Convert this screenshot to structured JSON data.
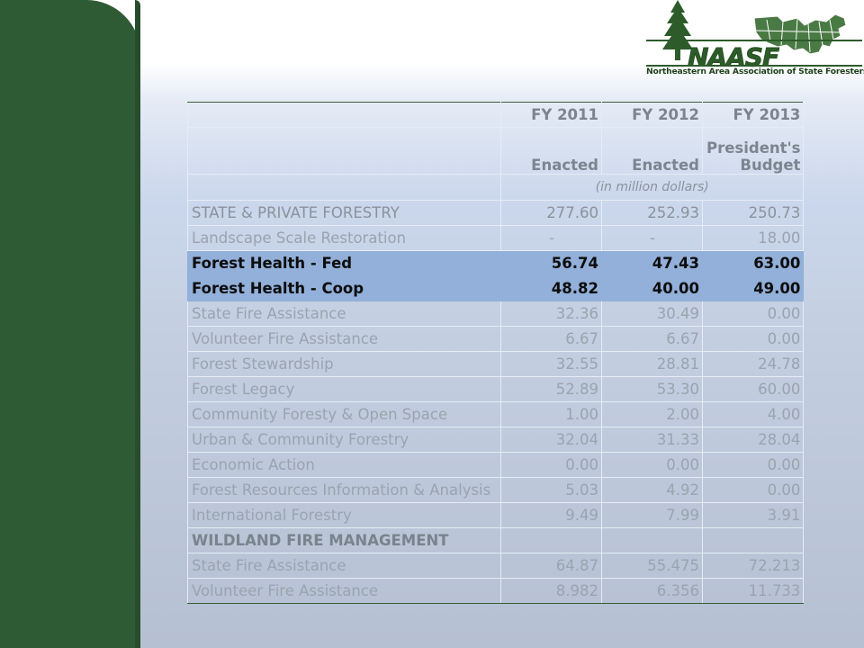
{
  "logo": {
    "wordmark": "NAASF",
    "tagline": "Northeastern Area Association of State Foresters",
    "icons": [
      "pine-tree-icon",
      "northeast-states-map-icon"
    ]
  },
  "table": {
    "header": {
      "col1": "FY 2011",
      "col2": "FY 2012",
      "col3": "FY 2013",
      "sub1": "Enacted",
      "sub2": "Enacted",
      "sub3_line1": "President's",
      "sub3_line2": "Budget",
      "units": "(in million dollars)"
    },
    "rows": [
      {
        "label": "STATE & PRIVATE FORESTRY",
        "fy2011": "277.60",
        "fy2012": "252.93",
        "fy2013": "250.73"
      },
      {
        "label": "Landscape Scale Restoration",
        "fy2011": "-",
        "fy2012": "-",
        "fy2013": "18.00"
      },
      {
        "label": "Forest Health - Fed",
        "fy2011": "56.74",
        "fy2012": "47.43",
        "fy2013": "63.00"
      },
      {
        "label": "Forest Health - Coop",
        "fy2011": "48.82",
        "fy2012": "40.00",
        "fy2013": "49.00"
      },
      {
        "label": "State Fire Assistance",
        "fy2011": "32.36",
        "fy2012": "30.49",
        "fy2013": "0.00"
      },
      {
        "label": "Volunteer Fire Assistance",
        "fy2011": "6.67",
        "fy2012": "6.67",
        "fy2013": "0.00"
      },
      {
        "label": "Forest Stewardship",
        "fy2011": "32.55",
        "fy2012": "28.81",
        "fy2013": "24.78"
      },
      {
        "label": "Forest Legacy",
        "fy2011": "52.89",
        "fy2012": "53.30",
        "fy2013": "60.00"
      },
      {
        "label": "Community Foresty & Open Space",
        "fy2011": "1.00",
        "fy2012": "2.00",
        "fy2013": "4.00"
      },
      {
        "label": "Urban & Community Forestry",
        "fy2011": "32.04",
        "fy2012": "31.33",
        "fy2013": "28.04"
      },
      {
        "label": "Economic Action",
        "fy2011": "0.00",
        "fy2012": "0.00",
        "fy2013": "0.00"
      },
      {
        "label": "Forest Resources Information & Analysis",
        "fy2011": "5.03",
        "fy2012": "4.92",
        "fy2013": "0.00"
      },
      {
        "label": "International Forestry",
        "fy2011": "9.49",
        "fy2012": "7.99",
        "fy2013": "3.91"
      },
      {
        "label": "WILDLAND FIRE MANAGEMENT",
        "fy2011": "",
        "fy2012": "",
        "fy2013": ""
      },
      {
        "label": "State Fire Assistance",
        "fy2011": "64.87",
        "fy2012": "55.475",
        "fy2013": "72.213"
      },
      {
        "label": "Volunteer Fire Assistance",
        "fy2011": "8.982",
        "fy2012": "6.356",
        "fy2013": "11.733"
      }
    ]
  },
  "colors": {
    "sidebar_green": "#2e5a34",
    "highlight_blue": "#92b0d9",
    "logo_green": "#2d5b2a"
  }
}
